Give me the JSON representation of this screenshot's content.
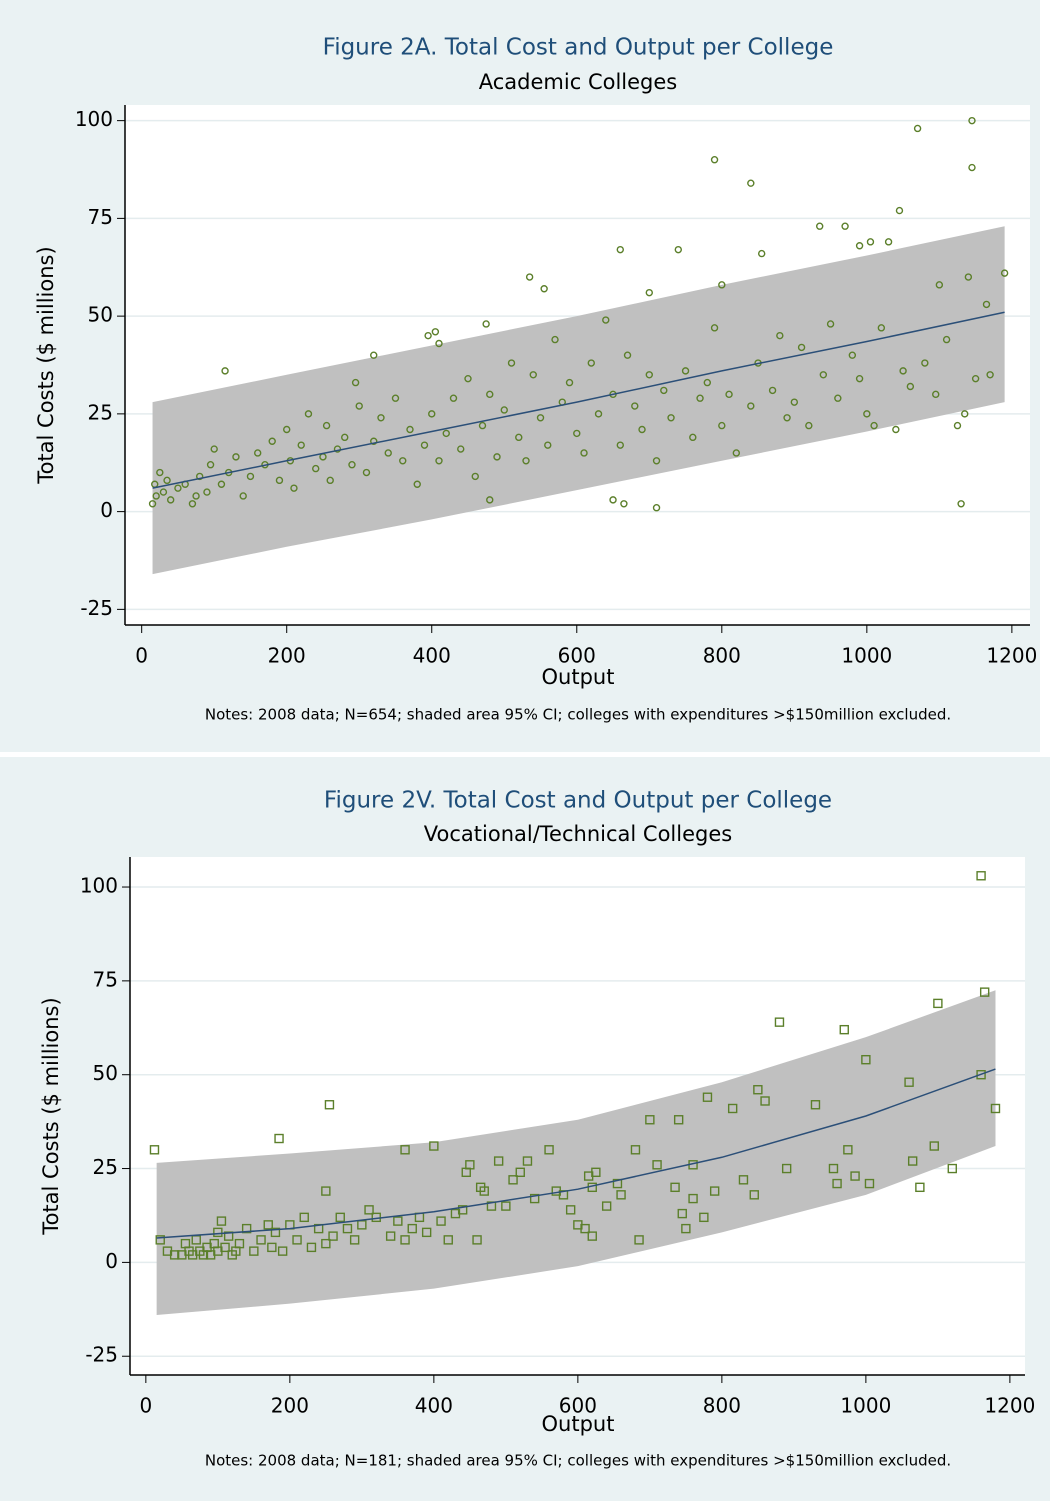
{
  "chart_data": [
    {
      "type": "scatter",
      "title": "Figure 2A. Total Cost and Output per College",
      "subtitle": "Academic Colleges",
      "x_label": "Output",
      "y_label": "Total Costs ($ millions)",
      "note": "Notes: 2008 data; N=654; shaded area 95% CI; colleges with expenditures >$150million excluded.",
      "xlim": [
        -23,
        1225
      ],
      "ylim": [
        -29,
        104
      ],
      "xticks": [
        0,
        200,
        400,
        600,
        800,
        1000,
        1200
      ],
      "yticks": [
        -25,
        0,
        25,
        50,
        75,
        100
      ],
      "grid": true,
      "marker": "circle",
      "points": {
        "color": "#5b7f2a",
        "x": [
          15,
          18,
          20,
          25,
          30,
          35,
          40,
          50,
          60,
          70,
          75,
          80,
          90,
          95,
          100,
          110,
          120,
          130,
          140,
          150,
          160,
          170,
          180,
          190,
          200,
          205,
          210,
          220,
          230,
          240,
          250,
          255,
          260,
          270,
          280,
          290,
          295,
          300,
          310,
          320,
          330,
          340,
          350,
          360,
          370,
          380,
          390,
          400,
          410,
          420,
          430,
          440,
          450,
          460,
          470,
          480,
          490,
          500,
          510,
          520,
          530,
          540,
          550,
          560,
          570,
          580,
          590,
          600,
          610,
          620,
          630,
          640,
          650,
          660,
          670,
          680,
          690,
          700,
          710,
          720,
          730,
          750,
          760,
          770,
          780,
          790,
          800,
          810,
          820,
          840,
          850,
          870,
          880,
          890,
          900,
          910,
          920,
          940,
          950,
          960,
          980,
          990,
          1000,
          1020,
          1050,
          1060,
          1080,
          1095,
          1110,
          1170,
          115,
          320,
          395,
          405,
          410,
          475,
          535,
          555,
          660,
          700,
          740,
          790,
          840,
          855,
          800,
          935,
          970,
          1045,
          1070,
          1145,
          1145,
          1030,
          1005,
          990,
          1190,
          1140,
          1165,
          710,
          650,
          665,
          1130,
          480,
          1100,
          1150,
          1135,
          1125,
          1010,
          1040
        ],
        "y": [
          2,
          7,
          4,
          10,
          5,
          8,
          3,
          6,
          7,
          2,
          4,
          9,
          5,
          12,
          16,
          7,
          10,
          14,
          4,
          9,
          15,
          12,
          18,
          8,
          21,
          13,
          6,
          17,
          25,
          11,
          14,
          22,
          8,
          16,
          19,
          12,
          33,
          27,
          10,
          18,
          24,
          15,
          29,
          13,
          21,
          7,
          17,
          25,
          13,
          20,
          29,
          16,
          34,
          9,
          22,
          30,
          14,
          26,
          38,
          19,
          13,
          35,
          24,
          17,
          44,
          28,
          33,
          20,
          15,
          38,
          25,
          49,
          30,
          17,
          40,
          27,
          21,
          35,
          13,
          31,
          24,
          36,
          19,
          29,
          33,
          47,
          22,
          30,
          15,
          27,
          38,
          31,
          45,
          24,
          28,
          42,
          22,
          35,
          48,
          29,
          40,
          34,
          25,
          47,
          36,
          32,
          38,
          30,
          44,
          35,
          36,
          40,
          45,
          46,
          43,
          48,
          60,
          57,
          67,
          56,
          67,
          90,
          84,
          66,
          58,
          73,
          73,
          77,
          98,
          100,
          88,
          69,
          69,
          68,
          61,
          60,
          53,
          1,
          3,
          2,
          2,
          3,
          58,
          34,
          25,
          22,
          22,
          21
        ]
      },
      "fit": {
        "color": "#2b4f78",
        "x": [
          15,
          200,
          400,
          600,
          800,
          1000,
          1190
        ],
        "values": [
          6,
          13,
          20.5,
          28,
          36,
          43.5,
          51
        ]
      },
      "ci_band": {
        "color": "#c0c0c0",
        "x": [
          15,
          200,
          400,
          600,
          800,
          1000,
          1190
        ],
        "lower": [
          -16,
          -9,
          -2,
          5.5,
          13,
          20.5,
          28
        ],
        "upper": [
          28,
          35,
          42.5,
          50,
          58,
          65.5,
          73
        ]
      }
    },
    {
      "type": "scatter",
      "title": "Figure 2V. Total Cost and Output per College",
      "subtitle": "Vocational/Technical Colleges",
      "x_label": "Output",
      "y_label": "Total Costs ($ millions)",
      "note": "Notes: 2008 data; N=181; shaded area 95% CI; colleges with expenditures >$150million excluded.",
      "xlim": [
        -22,
        1221
      ],
      "ylim": [
        -30,
        108
      ],
      "xticks": [
        0,
        200,
        400,
        600,
        800,
        1000,
        1200
      ],
      "yticks": [
        -25,
        0,
        25,
        50,
        75,
        100
      ],
      "grid": true,
      "marker": "square",
      "points": {
        "color": "#5b7f2a",
        "x": [
          30,
          40,
          50,
          55,
          60,
          65,
          70,
          75,
          80,
          85,
          90,
          95,
          100,
          100,
          105,
          110,
          115,
          120,
          125,
          130,
          140,
          150,
          160,
          170,
          175,
          180,
          190,
          200,
          210,
          220,
          230,
          240,
          250,
          260,
          270,
          280,
          290,
          300,
          310,
          320,
          340,
          350,
          360,
          370,
          380,
          390,
          410,
          420,
          430,
          440,
          500,
          540,
          580,
          590,
          12,
          20,
          185,
          255,
          250,
          360,
          400,
          880,
          970,
          1000,
          1100,
          1160,
          1165,
          1160,
          1180,
          1060,
          1065,
          1075,
          1095,
          1120,
          960,
          955,
          975,
          985,
          1005,
          930,
          890,
          850,
          860,
          845,
          830,
          780,
          815,
          790,
          775,
          760,
          760,
          740,
          745,
          750,
          735,
          700,
          710,
          680,
          685,
          655,
          660,
          640,
          625,
          615,
          620,
          600,
          610,
          620,
          570,
          560,
          530,
          520,
          510,
          490,
          445,
          450,
          460,
          465,
          470,
          480
        ],
        "y": [
          3,
          2,
          2,
          5,
          3,
          2,
          6,
          3,
          2,
          4,
          2,
          5,
          8,
          3,
          11,
          4,
          7,
          2,
          3,
          5,
          9,
          3,
          6,
          10,
          4,
          8,
          3,
          10,
          6,
          12,
          4,
          9,
          5,
          7,
          12,
          9,
          6,
          10,
          14,
          12,
          7,
          11,
          6,
          9,
          12,
          8,
          11,
          6,
          13,
          14,
          15,
          17,
          18,
          14,
          30,
          6,
          33,
          42,
          19,
          30,
          31,
          64,
          62,
          54,
          69,
          103,
          72,
          50,
          41,
          48,
          27,
          20,
          31,
          25,
          21,
          25,
          30,
          23,
          21,
          42,
          25,
          46,
          43,
          18,
          22,
          44,
          41,
          19,
          12,
          17,
          26,
          38,
          13,
          9,
          20,
          38,
          26,
          30,
          6,
          21,
          18,
          15,
          24,
          23,
          20,
          10,
          9,
          7,
          19,
          30,
          27,
          24,
          22,
          27,
          24,
          26,
          6,
          20,
          19,
          15
        ]
      },
      "fit": {
        "color": "#2b4f78",
        "x": [
          15,
          200,
          400,
          600,
          800,
          1000,
          1180
        ],
        "values": [
          6.5,
          9,
          13.5,
          19.5,
          28,
          39,
          51.5
        ]
      },
      "ci_band": {
        "color": "#c0c0c0",
        "x": [
          15,
          200,
          400,
          600,
          800,
          1000,
          1180
        ],
        "lower": [
          -14,
          -11,
          -7,
          -1,
          8,
          18,
          31
        ],
        "upper": [
          26.5,
          29,
          32,
          38,
          48,
          60,
          72.5
        ]
      }
    }
  ]
}
